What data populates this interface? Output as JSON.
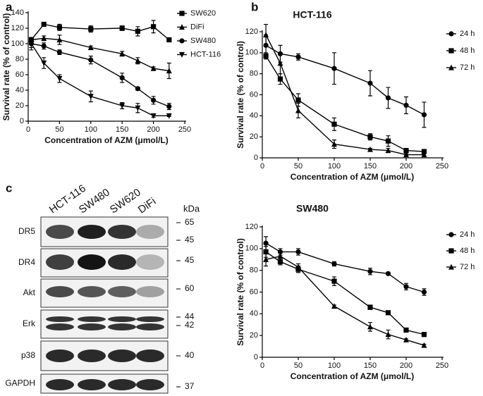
{
  "panel_labels": [
    "a",
    "b",
    "c"
  ],
  "chart_data": [
    {
      "type": "line",
      "x_label": "Concentration of AZM (μmol/L)",
      "y_label": "Survival rate (% of control)",
      "x": [
        5,
        25,
        50,
        100,
        150,
        175,
        200,
        225
      ],
      "xlim": [
        0,
        250
      ],
      "xticks": [
        0,
        50,
        100,
        150,
        200,
        250
      ],
      "ylim": [
        0,
        140
      ],
      "yticks": [
        0,
        20,
        40,
        60,
        80,
        100,
        120,
        140
      ],
      "legend": "right",
      "series": [
        {
          "name": "SW620",
          "marker": "square",
          "color": "#000000",
          "values": [
            105,
            125,
            121,
            119,
            120,
            116,
            122,
            105
          ],
          "errors": [
            3,
            2,
            4,
            4,
            3,
            6,
            8,
            2
          ]
        },
        {
          "name": "DiFi",
          "marker": "triangle",
          "color": "#000000",
          "values": [
            105,
            107,
            105,
            95,
            87,
            78,
            68,
            65
          ],
          "errors": [
            3,
            3,
            6,
            2,
            3,
            4,
            2,
            10
          ]
        },
        {
          "name": "SW480",
          "marker": "circle",
          "color": "#000000",
          "values": [
            100,
            97,
            89,
            79,
            56,
            42,
            27,
            19
          ],
          "errors": [
            8,
            4,
            3,
            5,
            6,
            2,
            5,
            4
          ]
        },
        {
          "name": "HCT-116",
          "marker": "triangle-down",
          "color": "#000000",
          "values": [
            100,
            75,
            55,
            32,
            20,
            17,
            7,
            7
          ],
          "errors": [
            5,
            7,
            5,
            7,
            4,
            6,
            2,
            1
          ]
        }
      ]
    },
    {
      "type": "line",
      "title": "HCT-116",
      "x_label": "Concentration of AZM (μmol/L)",
      "y_label": "Survival rate (% of control)",
      "x": [
        5,
        25,
        50,
        100,
        150,
        175,
        200,
        225
      ],
      "xlim": [
        0,
        250
      ],
      "xticks": [
        0,
        50,
        100,
        150,
        200,
        250
      ],
      "ylim": [
        0,
        120
      ],
      "yticks": [
        0,
        20,
        40,
        60,
        80,
        100,
        120
      ],
      "legend": "right",
      "series": [
        {
          "name": "24 h",
          "marker": "circle",
          "color": "#000000",
          "values": [
            107,
            99,
            96,
            85,
            71,
            57,
            50,
            41
          ],
          "errors": [
            10,
            8,
            3,
            15,
            12,
            10,
            8,
            12
          ]
        },
        {
          "name": "48 h",
          "marker": "square",
          "color": "#000000",
          "values": [
            97,
            75,
            55,
            32,
            20,
            16,
            7,
            6
          ],
          "errors": [
            3,
            5,
            6,
            6,
            3,
            5,
            2,
            2
          ]
        },
        {
          "name": "72 h",
          "marker": "triangle",
          "color": "#000000",
          "values": [
            117,
            90,
            45,
            13,
            8,
            7,
            3,
            3
          ],
          "errors": [
            10,
            10,
            7,
            4,
            1,
            2,
            1,
            1
          ]
        }
      ]
    },
    {
      "type": "line",
      "title": "SW480",
      "x_label": "Concentration of AZM (μmol/L)",
      "y_label": "Survival rate (% of control)",
      "x": [
        5,
        25,
        50,
        100,
        150,
        175,
        200,
        225
      ],
      "xlim": [
        0,
        250
      ],
      "xticks": [
        0,
        50,
        100,
        150,
        200,
        250
      ],
      "ylim": [
        0,
        120
      ],
      "yticks": [
        0,
        20,
        40,
        60,
        80,
        100,
        120
      ],
      "legend": "right",
      "series": [
        {
          "name": "24 h",
          "marker": "circle",
          "color": "#000000",
          "values": [
            105,
            97,
            97,
            86,
            79,
            77,
            65,
            60
          ],
          "errors": [
            6,
            3,
            3,
            2,
            3,
            1,
            3,
            3
          ]
        },
        {
          "name": "48 h",
          "marker": "square",
          "color": "#000000",
          "values": [
            97,
            88,
            81,
            70,
            46,
            41,
            25,
            21
          ],
          "errors": [
            5,
            3,
            3,
            4,
            2,
            1,
            1,
            2
          ]
        },
        {
          "name": "72 h",
          "marker": "triangle",
          "color": "#000000",
          "values": [
            90,
            93,
            83,
            47,
            28,
            21,
            16,
            11
          ],
          "errors": [
            6,
            5,
            3,
            1,
            4,
            4,
            1,
            1
          ]
        }
      ]
    }
  ],
  "blot": {
    "columns": [
      "HCT-116",
      "SW480",
      "SW620",
      "DiFi"
    ],
    "unit": "kDa",
    "rows": [
      {
        "label": "DR5",
        "kda": [
          "65",
          "45"
        ]
      },
      {
        "label": "DR4",
        "kda": [
          "45"
        ]
      },
      {
        "label": "Akt",
        "kda": [
          "60"
        ]
      },
      {
        "label": "Erk",
        "kda": [
          "44",
          "42"
        ]
      },
      {
        "label": "p38",
        "kda": [
          "40"
        ]
      },
      {
        "label": "GAPDH",
        "kda": [
          "37"
        ]
      }
    ]
  }
}
